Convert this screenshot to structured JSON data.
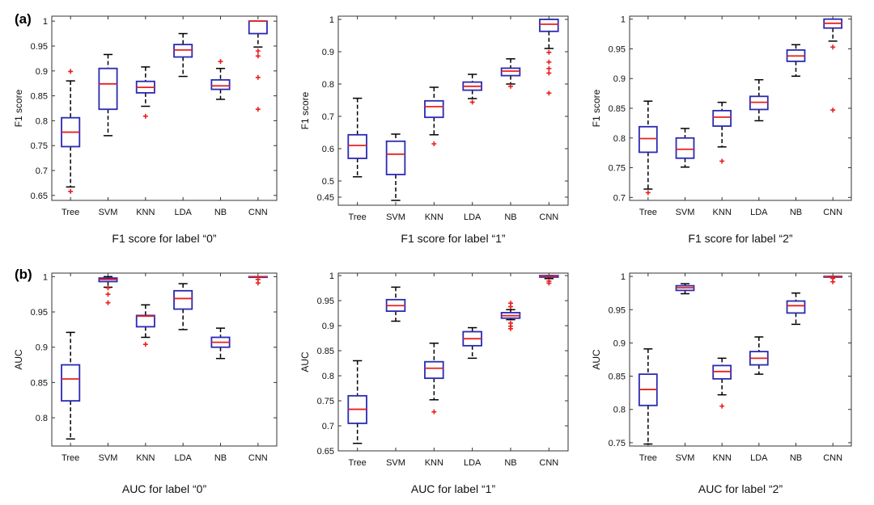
{
  "panel_labels": [
    "(a)",
    "(b)"
  ],
  "colors": {
    "box": "#2a2ab4",
    "median": "#e8201e",
    "whisker": "#000000",
    "outlier": "#e8201e",
    "axis": "#333333",
    "text": "#111111"
  },
  "chart_data": [
    {
      "type": "box",
      "title": "F1 score for label “0”",
      "xlabel": "",
      "ylabel": "F1 score",
      "categories": [
        "Tree",
        "SVM",
        "KNN",
        "LDA",
        "NB",
        "CNN"
      ],
      "ylim": [
        0.64,
        1.01
      ],
      "yticks": [
        0.65,
        0.7,
        0.75,
        0.8,
        0.85,
        0.9,
        0.95,
        1
      ],
      "ytick_labels": [
        "0.65",
        "0.7",
        "0.75",
        "0.8",
        "0.85",
        "0.9",
        "0.95",
        "1"
      ],
      "boxes": [
        {
          "min": 0.667,
          "q1": 0.748,
          "median": 0.777,
          "q3": 0.806,
          "max": 0.88,
          "outliers": [
            0.899,
            0.658
          ]
        },
        {
          "min": 0.77,
          "q1": 0.823,
          "median": 0.874,
          "q3": 0.905,
          "max": 0.933,
          "outliers": []
        },
        {
          "min": 0.829,
          "q1": 0.856,
          "median": 0.867,
          "q3": 0.879,
          "max": 0.908,
          "outliers": [
            0.809
          ]
        },
        {
          "min": 0.889,
          "q1": 0.928,
          "median": 0.942,
          "q3": 0.953,
          "max": 0.975,
          "outliers": []
        },
        {
          "min": 0.843,
          "q1": 0.863,
          "median": 0.87,
          "q3": 0.882,
          "max": 0.905,
          "outliers": [
            0.919
          ]
        },
        {
          "min": 0.948,
          "q1": 0.975,
          "median": 1.0,
          "q3": 1.0,
          "max": 1.0,
          "outliers": [
            0.94,
            0.93,
            0.887,
            0.823
          ]
        }
      ]
    },
    {
      "type": "box",
      "title": "F1 score for label “1”",
      "xlabel": "",
      "ylabel": "F1 score",
      "categories": [
        "Tree",
        "SVM",
        "KNN",
        "LDA",
        "NB",
        "CNN"
      ],
      "ylim": [
        0.425,
        1.01
      ],
      "yticks": [
        0.45,
        0.5,
        0.6,
        0.7,
        0.8,
        0.9,
        1
      ],
      "ytick_labels": [
        "0.45",
        "0.5",
        "0.6",
        "0.7",
        "0.8",
        "0.9",
        "1"
      ],
      "boxes": [
        {
          "min": 0.513,
          "q1": 0.57,
          "median": 0.61,
          "q3": 0.643,
          "max": 0.756,
          "outliers": []
        },
        {
          "min": 0.44,
          "q1": 0.52,
          "median": 0.583,
          "q3": 0.623,
          "max": 0.645,
          "outliers": []
        },
        {
          "min": 0.643,
          "q1": 0.697,
          "median": 0.73,
          "q3": 0.748,
          "max": 0.79,
          "outliers": [
            0.615
          ]
        },
        {
          "min": 0.755,
          "q1": 0.781,
          "median": 0.793,
          "q3": 0.806,
          "max": 0.83,
          "outliers": [
            0.744
          ]
        },
        {
          "min": 0.8,
          "q1": 0.826,
          "median": 0.84,
          "q3": 0.849,
          "max": 0.878,
          "outliers": [
            0.793
          ]
        },
        {
          "min": 0.91,
          "q1": 0.963,
          "median": 0.985,
          "q3": 1.0,
          "max": 1.0,
          "outliers": [
            0.898,
            0.868,
            0.848,
            0.834,
            0.772
          ]
        }
      ]
    },
    {
      "type": "box",
      "title": "F1 score for label “2”",
      "xlabel": "",
      "ylabel": "F1 score",
      "categories": [
        "Tree",
        "SVM",
        "KNN",
        "LDA",
        "NB",
        "CNN"
      ],
      "ylim": [
        0.695,
        1.005
      ],
      "yticks": [
        0.7,
        0.75,
        0.8,
        0.85,
        0.9,
        0.95,
        1
      ],
      "ytick_labels": [
        "0.7",
        "0.75",
        "0.8",
        "0.85",
        "0.9",
        "0.95",
        "1"
      ],
      "boxes": [
        {
          "min": 0.714,
          "q1": 0.776,
          "median": 0.799,
          "q3": 0.819,
          "max": 0.862,
          "outliers": [
            0.708
          ]
        },
        {
          "min": 0.751,
          "q1": 0.766,
          "median": 0.781,
          "q3": 0.8,
          "max": 0.816,
          "outliers": []
        },
        {
          "min": 0.785,
          "q1": 0.82,
          "median": 0.835,
          "q3": 0.846,
          "max": 0.86,
          "outliers": [
            0.761
          ]
        },
        {
          "min": 0.829,
          "q1": 0.848,
          "median": 0.86,
          "q3": 0.87,
          "max": 0.898,
          "outliers": []
        },
        {
          "min": 0.904,
          "q1": 0.929,
          "median": 0.938,
          "q3": 0.948,
          "max": 0.957,
          "outliers": []
        },
        {
          "min": 0.963,
          "q1": 0.985,
          "median": 0.993,
          "q3": 1.0,
          "max": 1.0,
          "outliers": [
            0.953,
            0.847
          ]
        }
      ]
    },
    {
      "type": "box",
      "title": "AUC for label “0”",
      "xlabel": "",
      "ylabel": "AUC",
      "categories": [
        "Tree",
        "SVM",
        "KNN",
        "LDA",
        "NB",
        "CNN"
      ],
      "ylim": [
        0.76,
        1.005
      ],
      "yticks": [
        0.8,
        0.85,
        0.9,
        0.95,
        1
      ],
      "ytick_labels": [
        "0.8",
        "0.85",
        "0.9",
        "0.95",
        "1"
      ],
      "boxes": [
        {
          "min": 0.77,
          "q1": 0.824,
          "median": 0.855,
          "q3": 0.875,
          "max": 0.921,
          "outliers": []
        },
        {
          "min": 0.985,
          "q1": 0.993,
          "median": 0.996,
          "q3": 0.998,
          "max": 1.0,
          "outliers": [
            0.984,
            0.975,
            0.963
          ]
        },
        {
          "min": 0.914,
          "q1": 0.929,
          "median": 0.944,
          "q3": 0.945,
          "max": 0.96,
          "outliers": [
            0.904
          ]
        },
        {
          "min": 0.925,
          "q1": 0.954,
          "median": 0.969,
          "q3": 0.98,
          "max": 0.99,
          "outliers": []
        },
        {
          "min": 0.884,
          "q1": 0.9,
          "median": 0.907,
          "q3": 0.914,
          "max": 0.927,
          "outliers": []
        },
        {
          "min": 1.0,
          "q1": 1.0,
          "median": 1.0,
          "q3": 1.0,
          "max": 1.0,
          "outliers": [
            0.996,
            0.991
          ]
        }
      ]
    },
    {
      "type": "box",
      "title": "AUC for label “1”",
      "xlabel": "",
      "ylabel": "AUC",
      "categories": [
        "Tree",
        "SVM",
        "KNN",
        "LDA",
        "NB",
        "CNN"
      ],
      "ylim": [
        0.65,
        1.005
      ],
      "yticks": [
        0.65,
        0.7,
        0.75,
        0.8,
        0.85,
        0.9,
        0.95,
        1
      ],
      "ytick_labels": [
        "0.65",
        "0.7",
        "0.75",
        "0.8",
        "0.85",
        "0.9",
        "0.95",
        "1"
      ],
      "boxes": [
        {
          "min": 0.665,
          "q1": 0.705,
          "median": 0.733,
          "q3": 0.76,
          "max": 0.83,
          "outliers": []
        },
        {
          "min": 0.909,
          "q1": 0.929,
          "median": 0.94,
          "q3": 0.952,
          "max": 0.977,
          "outliers": []
        },
        {
          "min": 0.752,
          "q1": 0.795,
          "median": 0.815,
          "q3": 0.828,
          "max": 0.865,
          "outliers": [
            0.728
          ]
        },
        {
          "min": 0.835,
          "q1": 0.86,
          "median": 0.874,
          "q3": 0.888,
          "max": 0.896,
          "outliers": []
        },
        {
          "min": 0.912,
          "q1": 0.915,
          "median": 0.92,
          "q3": 0.926,
          "max": 0.932,
          "outliers": [
            0.945,
            0.938,
            0.905,
            0.899,
            0.894
          ]
        },
        {
          "min": 0.994,
          "q1": 0.997,
          "median": 0.999,
          "q3": 1.0,
          "max": 1.0,
          "outliers": [
            0.989,
            0.985
          ]
        }
      ]
    },
    {
      "type": "box",
      "title": "AUC for label “2”",
      "xlabel": "",
      "ylabel": "AUC",
      "categories": [
        "Tree",
        "SVM",
        "KNN",
        "LDA",
        "NB",
        "CNN"
      ],
      "ylim": [
        0.745,
        1.005
      ],
      "yticks": [
        0.75,
        0.8,
        0.85,
        0.9,
        0.95,
        1
      ],
      "ytick_labels": [
        "0.75",
        "0.8",
        "0.85",
        "0.9",
        "0.95",
        "1"
      ],
      "boxes": [
        {
          "min": 0.748,
          "q1": 0.806,
          "median": 0.83,
          "q3": 0.853,
          "max": 0.891,
          "outliers": []
        },
        {
          "min": 0.974,
          "q1": 0.979,
          "median": 0.983,
          "q3": 0.986,
          "max": 0.989,
          "outliers": []
        },
        {
          "min": 0.822,
          "q1": 0.846,
          "median": 0.857,
          "q3": 0.866,
          "max": 0.877,
          "outliers": [
            0.805
          ]
        },
        {
          "min": 0.853,
          "q1": 0.867,
          "median": 0.877,
          "q3": 0.887,
          "max": 0.909,
          "outliers": []
        },
        {
          "min": 0.928,
          "q1": 0.945,
          "median": 0.956,
          "q3": 0.963,
          "max": 0.975,
          "outliers": []
        },
        {
          "min": 1.0,
          "q1": 1.0,
          "median": 1.0,
          "q3": 1.0,
          "max": 1.0,
          "outliers": [
            0.997,
            0.992
          ]
        }
      ]
    }
  ]
}
